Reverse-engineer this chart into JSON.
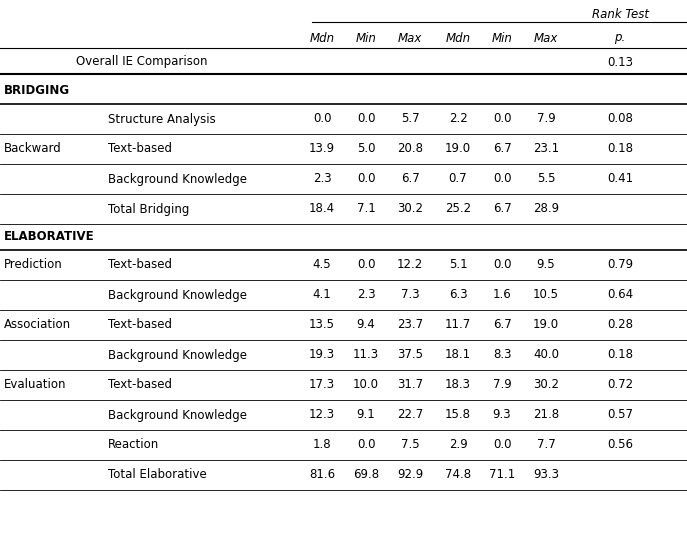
{
  "col_headers": [
    "Mdn",
    "Min",
    "Max",
    "Mdn",
    "Min",
    "Max",
    "p."
  ],
  "overall_ie_label": "Overall IE Comparison",
  "overall_ie_p": "0.13",
  "rows": [
    {
      "section": "BRIDGING",
      "cat1": "",
      "cat2": "",
      "vals": null,
      "is_section": true
    },
    {
      "cat1": "",
      "cat2": "Structure Analysis",
      "vals": [
        "0.0",
        "0.0",
        "5.7",
        "2.2",
        "0.0",
        "7.9",
        "0.08"
      ],
      "is_section": false
    },
    {
      "cat1": "Backward",
      "cat2": "Text-based",
      "vals": [
        "13.9",
        "5.0",
        "20.8",
        "19.0",
        "6.7",
        "23.1",
        "0.18"
      ],
      "is_section": false
    },
    {
      "cat1": "",
      "cat2": "Background Knowledge",
      "vals": [
        "2.3",
        "0.0",
        "6.7",
        "0.7",
        "0.0",
        "5.5",
        "0.41"
      ],
      "is_section": false
    },
    {
      "cat1": "",
      "cat2": "Total Bridging",
      "vals": [
        "18.4",
        "7.1",
        "30.2",
        "25.2",
        "6.7",
        "28.9",
        ""
      ],
      "is_section": false,
      "bold_cat2": false
    },
    {
      "section": "ELABORATIVE",
      "cat1": "",
      "cat2": "",
      "vals": null,
      "is_section": true
    },
    {
      "cat1": "Prediction",
      "cat2": "Text-based",
      "vals": [
        "4.5",
        "0.0",
        "12.2",
        "5.1",
        "0.0",
        "9.5",
        "0.79"
      ],
      "is_section": false
    },
    {
      "cat1": "",
      "cat2": "Background Knowledge",
      "vals": [
        "4.1",
        "2.3",
        "7.3",
        "6.3",
        "1.6",
        "10.5",
        "0.64"
      ],
      "is_section": false
    },
    {
      "cat1": "Association",
      "cat2": "Text-based",
      "vals": [
        "13.5",
        "9.4",
        "23.7",
        "11.7",
        "6.7",
        "19.0",
        "0.28"
      ],
      "is_section": false
    },
    {
      "cat1": "",
      "cat2": "Background Knowledge",
      "vals": [
        "19.3",
        "11.3",
        "37.5",
        "18.1",
        "8.3",
        "40.0",
        "0.18"
      ],
      "is_section": false
    },
    {
      "cat1": "Evaluation",
      "cat2": "Text-based",
      "vals": [
        "17.3",
        "10.0",
        "31.7",
        "18.3",
        "7.9",
        "30.2",
        "0.72"
      ],
      "is_section": false
    },
    {
      "cat1": "",
      "cat2": "Background Knowledge",
      "vals": [
        "12.3",
        "9.1",
        "22.7",
        "15.8",
        "9.3",
        "21.8",
        "0.57"
      ],
      "is_section": false
    },
    {
      "cat1": "",
      "cat2": "Reaction",
      "vals": [
        "1.8",
        "0.0",
        "7.5",
        "2.9",
        "0.0",
        "7.7",
        "0.56"
      ],
      "is_section": false
    },
    {
      "cat1": "",
      "cat2": "Total Elaborative",
      "vals": [
        "81.6",
        "69.8",
        "92.9",
        "74.8",
        "71.1",
        "93.3",
        ""
      ],
      "is_section": false,
      "bold_cat2": false
    }
  ],
  "bg_color": "#ffffff",
  "text_color": "#000000",
  "line_color": "#000000",
  "fs": 8.5
}
